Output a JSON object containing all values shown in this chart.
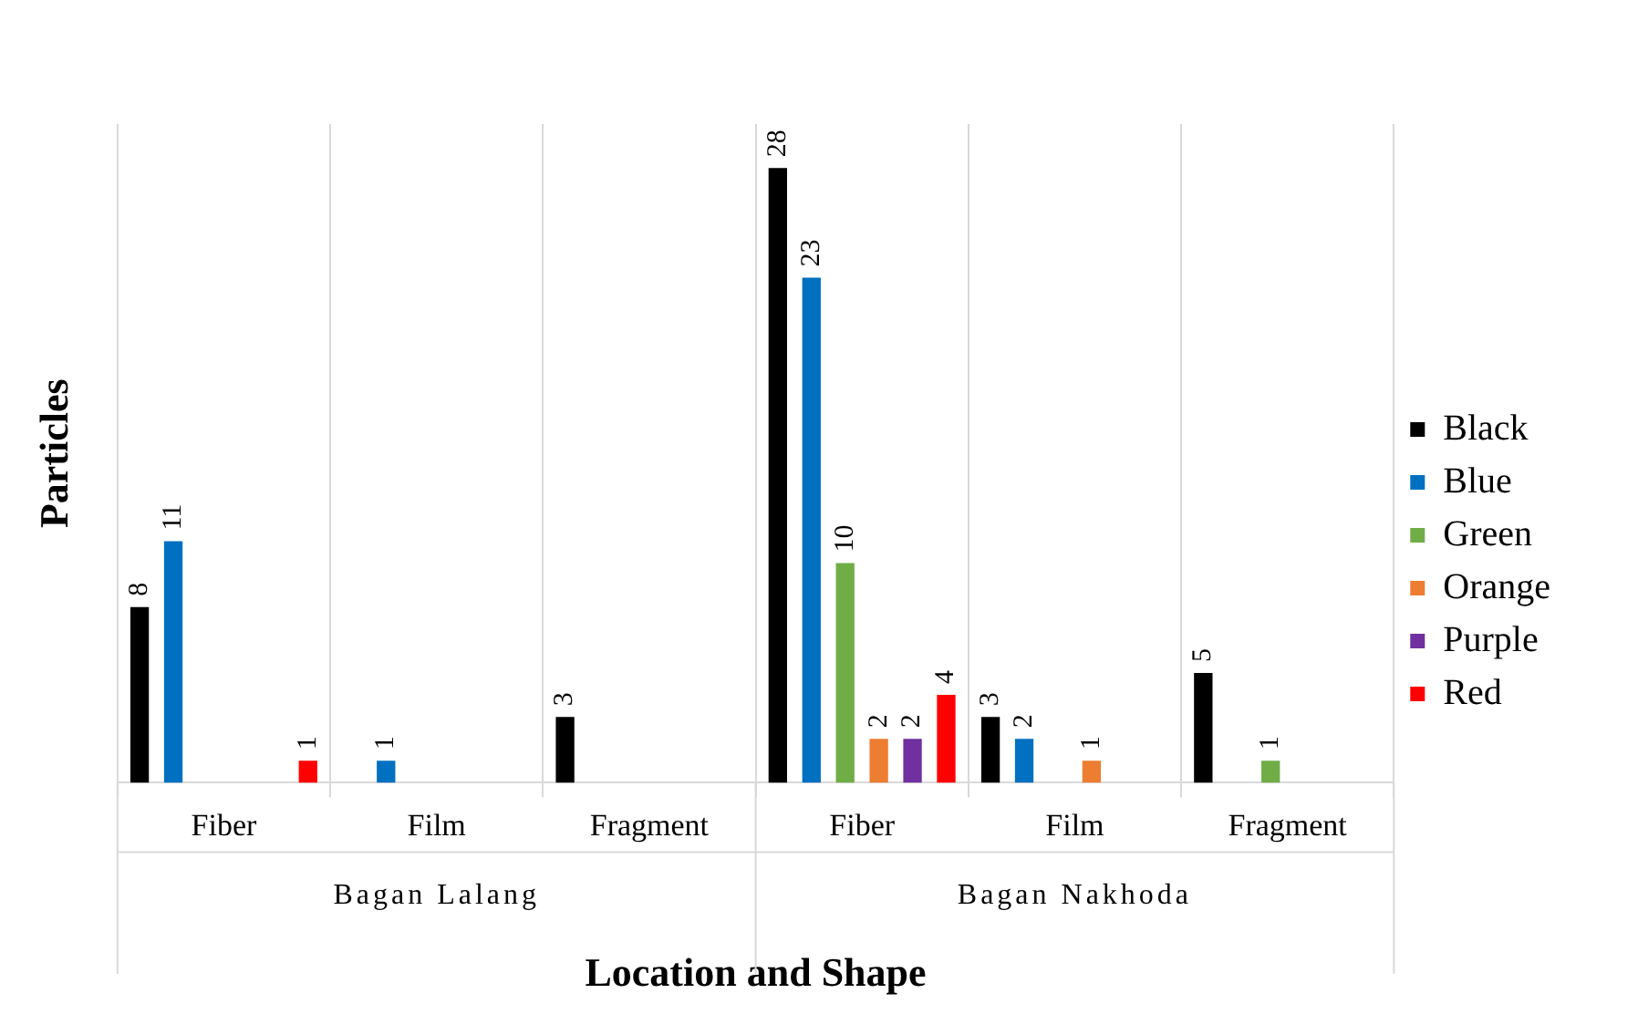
{
  "chart_data": {
    "type": "bar",
    "xlabel": "Location and Shape",
    "ylabel": "Particles",
    "categories": [
      "Fiber",
      "Film",
      "Fragment",
      "Fiber",
      "Film",
      "Fragment"
    ],
    "annotations": [
      "Bagan Lalang",
      "Bagan Nakhoda"
    ],
    "series": [
      {
        "name": "Black",
        "color": "#000000",
        "values": [
          8,
          null,
          3,
          28,
          3,
          5
        ]
      },
      {
        "name": "Blue",
        "color": "#0070c0",
        "values": [
          11,
          1,
          null,
          23,
          2,
          null
        ]
      },
      {
        "name": "Green",
        "color": "#70ad47",
        "values": [
          null,
          null,
          null,
          10,
          null,
          1
        ]
      },
      {
        "name": "Orange",
        "color": "#ed7d31",
        "values": [
          null,
          null,
          null,
          2,
          1,
          null
        ]
      },
      {
        "name": "Purple",
        "color": "#7030a0",
        "values": [
          null,
          null,
          null,
          2,
          null,
          null
        ]
      },
      {
        "name": "Red",
        "color": "#ff0000",
        "values": [
          1,
          null,
          null,
          4,
          null,
          null
        ]
      }
    ],
    "data_labels": true,
    "grid": "x",
    "legend": "right"
  }
}
